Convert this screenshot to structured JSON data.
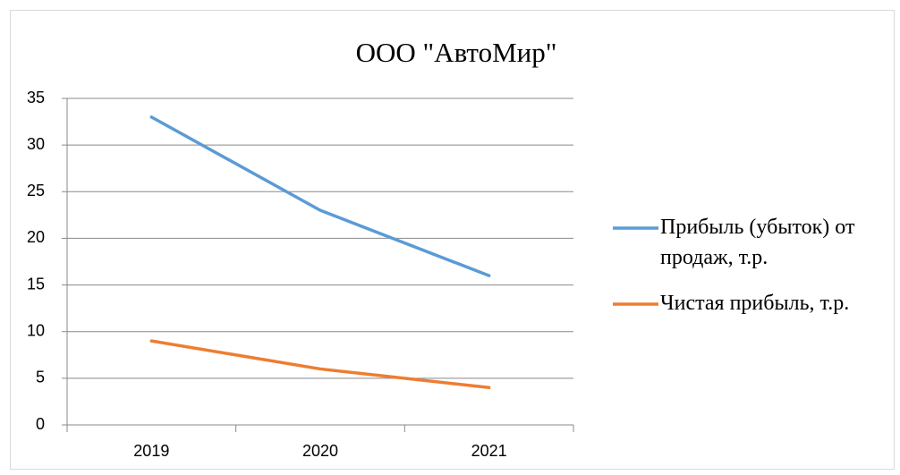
{
  "chart_data": {
    "type": "line",
    "title": "ООО \"АвтоМир\"",
    "categories": [
      "2019",
      "2020",
      "2021"
    ],
    "series": [
      {
        "name": "Прибыль (убыток) от продаж, т.р.",
        "color": "#5b9bd5",
        "values": [
          33,
          23,
          16
        ]
      },
      {
        "name": "Чистая прибыль, т.р.",
        "color": "#ed7d31",
        "values": [
          9,
          6,
          4
        ]
      }
    ],
    "ylim": [
      0,
      35
    ],
    "yticks": [
      0,
      5,
      10,
      15,
      20,
      25,
      30,
      35
    ],
    "grid": true,
    "legend": "right"
  }
}
